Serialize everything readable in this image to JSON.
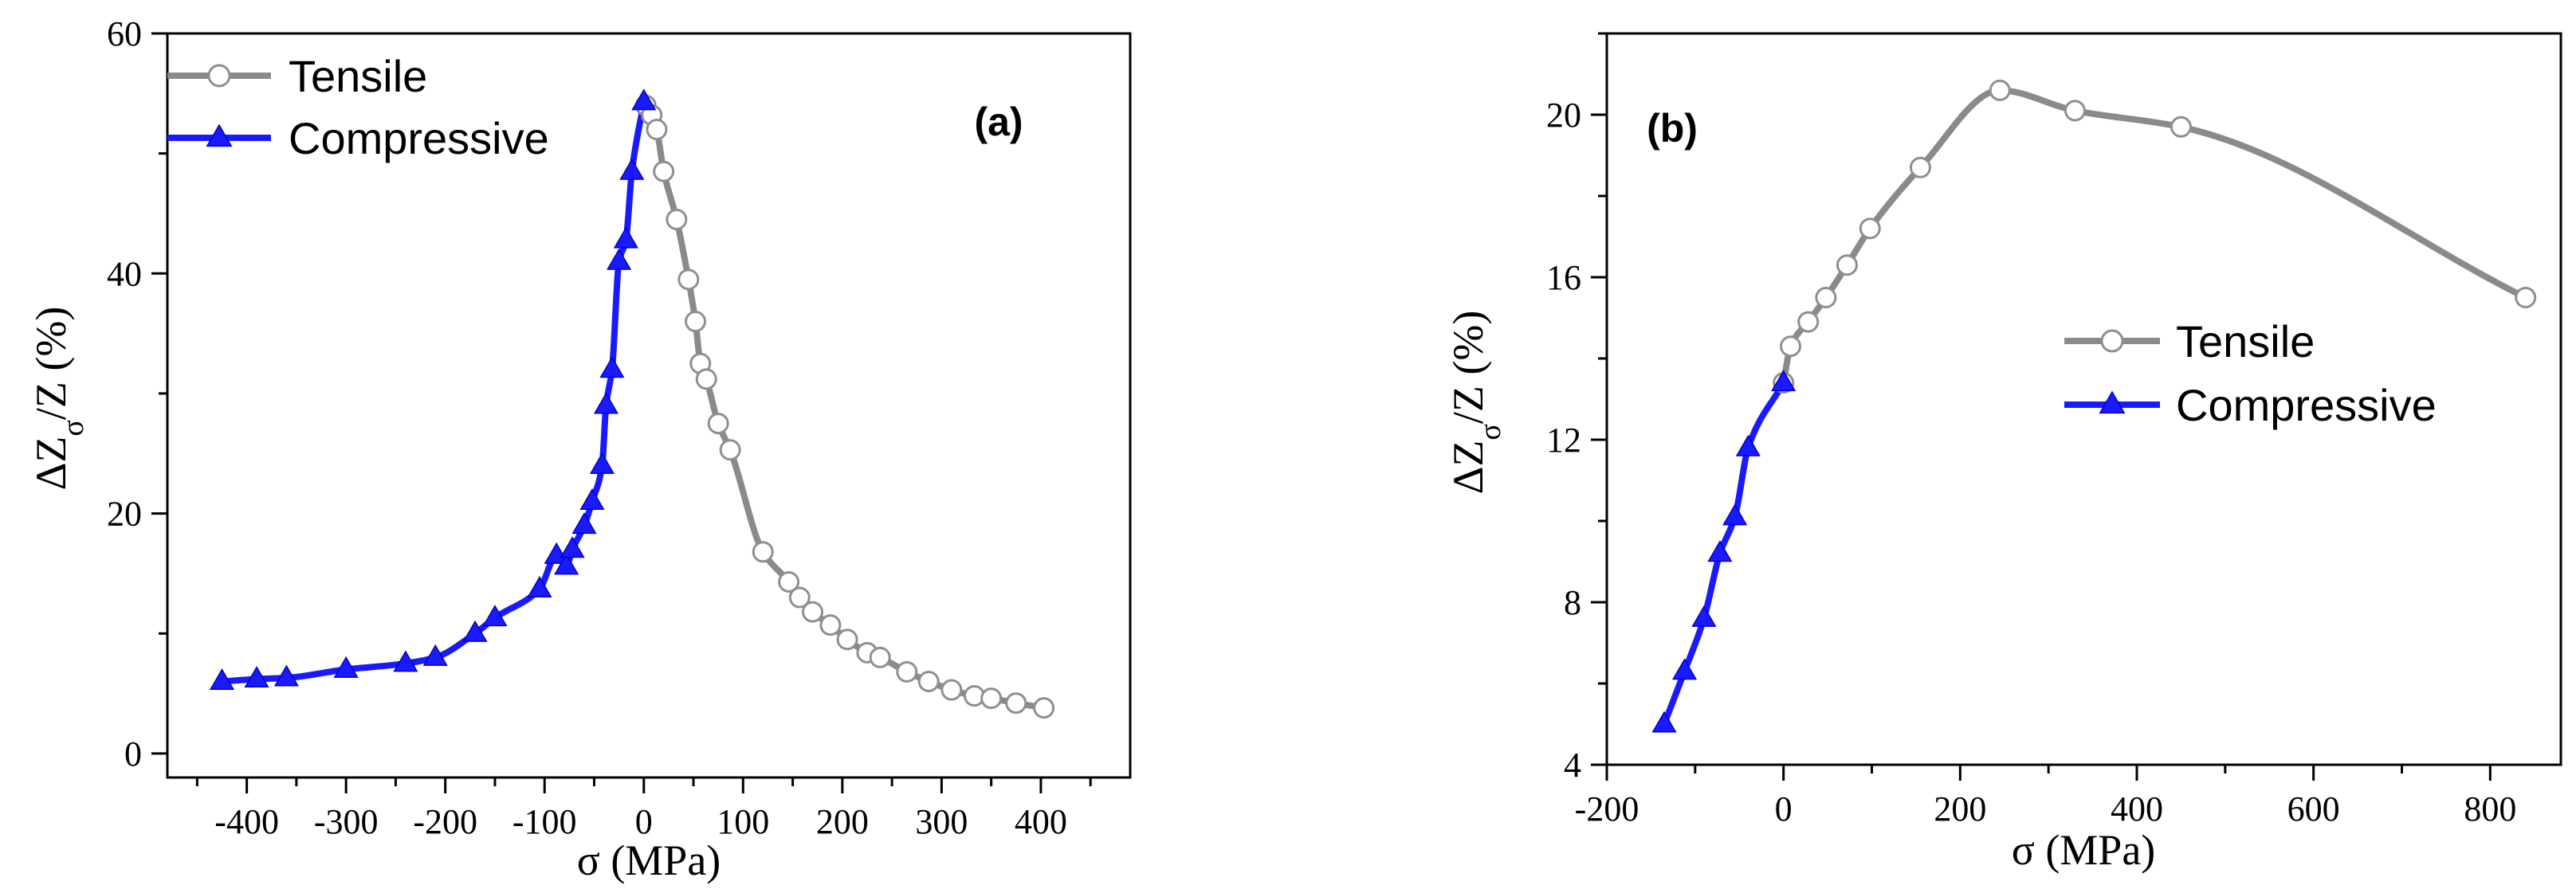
{
  "chart_data": [
    {
      "type": "line",
      "panel_label": "(a)",
      "xlabel": "σ (MPa)",
      "ylabel": "ΔZ",
      "ylabel_sub": "σ",
      "ylabel_rest": "/Z (%)",
      "xlim": [
        -480,
        490
      ],
      "ylim": [
        -2,
        60
      ],
      "xticks": [
        -400,
        -300,
        -200,
        -100,
        0,
        100,
        200,
        300,
        400
      ],
      "xticks_minor": [
        -450,
        -350,
        -250,
        -150,
        -50,
        50,
        150,
        250,
        350,
        450
      ],
      "yticks": [
        0,
        20,
        40,
        60
      ],
      "yticks_minor": [
        10,
        30,
        50
      ],
      "legend_position": "top-left",
      "series": [
        {
          "name": "Tensile",
          "color": "#8a8a8a",
          "marker": "open-circle",
          "x": [
            2,
            8,
            13,
            20,
            33,
            45,
            52,
            57,
            63,
            75,
            87,
            120,
            146,
            157,
            170,
            188,
            205,
            225,
            238,
            265,
            287,
            310,
            333,
            350,
            375,
            403
          ],
          "y": [
            54,
            53.2,
            52,
            48.5,
            44.5,
            39.5,
            36,
            32.5,
            31.2,
            27.5,
            25.3,
            16.8,
            14.3,
            13,
            11.8,
            10.7,
            9.5,
            8.4,
            8,
            6.8,
            6,
            5.3,
            4.8,
            4.6,
            4.2,
            3.8
          ]
        },
        {
          "name": "Compressive",
          "color": "#1a1aff",
          "marker": "filled-triangle",
          "x": [
            -425,
            -390,
            -360,
            -300,
            -240,
            -210,
            -170,
            -150,
            -105,
            -88,
            -78,
            -72,
            -60,
            -52,
            -42,
            -38,
            -32,
            -25,
            -18,
            -12,
            0
          ],
          "y": [
            6,
            6.2,
            6.3,
            7,
            7.5,
            8,
            10,
            11.3,
            13.7,
            16.5,
            15.6,
            17,
            19,
            21,
            24,
            29,
            32,
            41,
            42.8,
            48.5,
            54.3
          ]
        }
      ]
    },
    {
      "type": "line",
      "panel_label": "(b)",
      "xlabel": "σ (MPa)",
      "ylabel": "ΔZ",
      "ylabel_sub": "σ",
      "ylabel_rest": "/Z (%)",
      "xlim": [
        -200,
        880
      ],
      "ylim": [
        4,
        22
      ],
      "xticks": [
        -200,
        0,
        200,
        400,
        600,
        800
      ],
      "xticks_minor": [
        -100,
        100,
        300,
        500,
        700
      ],
      "yticks": [
        4,
        8,
        12,
        16,
        20
      ],
      "yticks_minor": [
        6,
        10,
        14,
        18,
        22
      ],
      "legend_position": "center-right",
      "series": [
        {
          "name": "Tensile",
          "color": "#8a8a8a",
          "marker": "open-circle",
          "x": [
            0,
            8,
            28,
            48,
            72,
            98,
            155,
            245,
            330,
            450,
            840
          ],
          "y": [
            13.4,
            14.3,
            14.9,
            15.5,
            16.3,
            17.2,
            18.7,
            20.6,
            20.1,
            19.7,
            15.5
          ]
        },
        {
          "name": "Compressive",
          "color": "#1a1aff",
          "marker": "filled-triangle",
          "x": [
            -135,
            -112,
            -90,
            -72,
            -55,
            -40,
            0
          ],
          "y": [
            5,
            6.3,
            7.6,
            9.2,
            10.1,
            11.8,
            13.4
          ]
        }
      ]
    }
  ]
}
